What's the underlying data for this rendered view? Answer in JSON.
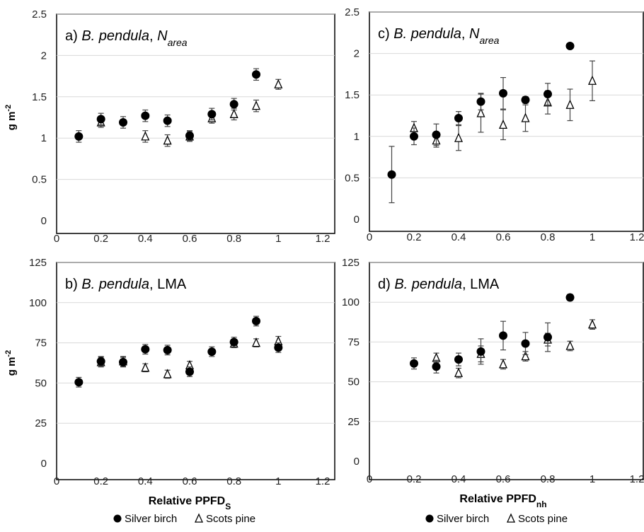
{
  "chart_data": [
    {
      "type": "scatter",
      "title_prefix": "a) ",
      "title_species": "B. pendula",
      "title_sep": ", ",
      "title_var": "N",
      "title_var_sub": "area",
      "ylabel": "g m",
      "ylabel_sup": "-2",
      "xlabel": "",
      "xlabel_sub": "",
      "xlim": [
        0,
        1.2
      ],
      "ylim": [
        0,
        2.5
      ],
      "xticks": [
        "0",
        "0.2",
        "0.4",
        "0.6",
        "0.8",
        "1",
        "1.2"
      ],
      "yticks": [
        "0",
        "0.5",
        "1",
        "1.5",
        "2",
        "2.5"
      ],
      "grid": true,
      "series": [
        {
          "name": "Silver birch",
          "marker": "filled-circle",
          "x": [
            0.1,
            0.2,
            0.3,
            0.4,
            0.5,
            0.6,
            0.7,
            0.8,
            0.9
          ],
          "y": [
            1.02,
            1.23,
            1.19,
            1.27,
            1.21,
            1.03,
            1.29,
            1.41,
            1.77
          ],
          "err": [
            0.07,
            0.07,
            0.07,
            0.07,
            0.07,
            0.06,
            0.07,
            0.07,
            0.07
          ]
        },
        {
          "name": "Scots pine",
          "marker": "open-triangle",
          "x": [
            0.2,
            0.4,
            0.5,
            0.6,
            0.7,
            0.8,
            0.9,
            1.0
          ],
          "y": [
            1.19,
            1.02,
            0.97,
            1.02,
            1.24,
            1.29,
            1.39,
            1.65
          ],
          "err": [
            0.06,
            0.07,
            0.07,
            0.06,
            0.06,
            0.07,
            0.07,
            0.06
          ]
        }
      ]
    },
    {
      "type": "scatter",
      "title_prefix": "b) ",
      "title_species": "B. pendula",
      "title_sep": ", ",
      "title_var": "LMA",
      "title_var_sub": "",
      "ylabel": "g m",
      "ylabel_sup": "-2",
      "xlabel": "Relative PPFD",
      "xlabel_sub": "S",
      "xlim": [
        0,
        1.2
      ],
      "ylim": [
        0,
        125
      ],
      "xticks": [
        "0",
        "0.2",
        "0.4",
        "0.6",
        "0.8",
        "1",
        "1.2"
      ],
      "yticks": [
        "0",
        "25",
        "50",
        "75",
        "100",
        "125"
      ],
      "grid": true,
      "series": [
        {
          "name": "Silver birch",
          "marker": "filled-circle",
          "x": [
            0.1,
            0.2,
            0.3,
            0.4,
            0.5,
            0.6,
            0.7,
            0.8,
            0.9,
            1.0
          ],
          "y": [
            50.5,
            63.5,
            63,
            71,
            70.5,
            57,
            69.5,
            75.5,
            88.5,
            72
          ],
          "err": [
            3,
            3,
            3,
            3,
            3,
            3,
            3,
            3,
            3,
            3
          ]
        },
        {
          "name": "Scots pine",
          "marker": "open-triangle",
          "x": [
            0.2,
            0.3,
            0.4,
            0.5,
            0.6,
            0.8,
            0.9,
            1.0
          ],
          "y": [
            63,
            63.5,
            59.5,
            55.5,
            61,
            74.5,
            75,
            76
          ],
          "err": [
            3,
            3,
            2.5,
            2.5,
            2.5,
            2.5,
            2.5,
            3
          ]
        }
      ]
    },
    {
      "type": "scatter",
      "title_prefix": "c) ",
      "title_species": "B. pendula",
      "title_sep": ", ",
      "title_var": "N",
      "title_var_sub": "area",
      "ylabel": "",
      "ylabel_sup": "",
      "xlabel": "",
      "xlabel_sub": "",
      "xlim": [
        0,
        1.2
      ],
      "ylim": [
        0,
        2.5
      ],
      "xticks": [
        "0",
        "0.2",
        "0.4",
        "0.6",
        "0.8",
        "1",
        "1.2"
      ],
      "yticks": [
        "0",
        "0.5",
        "1",
        "1.5",
        "2",
        "2.5"
      ],
      "grid": true,
      "series": [
        {
          "name": "Silver birch",
          "marker": "filled-circle",
          "x": [
            0.1,
            0.2,
            0.3,
            0.4,
            0.5,
            0.6,
            0.7,
            0.8,
            0.9
          ],
          "y": [
            0.54,
            1.0,
            1.02,
            1.22,
            1.42,
            1.52,
            1.44,
            1.51,
            2.09
          ],
          "err": [
            0.34,
            0.1,
            0.13,
            0.08,
            0.1,
            0.19,
            0.04,
            0.13,
            0.03
          ]
        },
        {
          "name": "Scots pine",
          "marker": "open-triangle",
          "x": [
            0.2,
            0.3,
            0.4,
            0.5,
            0.6,
            0.7,
            0.8,
            0.9,
            1.0
          ],
          "y": [
            1.1,
            0.95,
            0.98,
            1.28,
            1.14,
            1.22,
            1.41,
            1.38,
            1.67
          ],
          "err": [
            0.08,
            0.08,
            0.15,
            0.23,
            0.18,
            0.16,
            0.14,
            0.19,
            0.24
          ]
        }
      ]
    },
    {
      "type": "scatter",
      "title_prefix": "d) ",
      "title_species": "B. pendula",
      "title_sep": ", ",
      "title_var": "LMA",
      "title_var_sub": "",
      "ylabel": "",
      "ylabel_sup": "",
      "xlabel": "Relative PPFD",
      "xlabel_sub": "nh",
      "xlim": [
        0,
        1.2
      ],
      "ylim": [
        0,
        125
      ],
      "xticks": [
        "0",
        "0.2",
        "0.4",
        "0.6",
        "0.8",
        "1",
        "1.2"
      ],
      "yticks": [
        "0",
        "25",
        "50",
        "75",
        "100",
        "125"
      ],
      "grid": true,
      "series": [
        {
          "name": "Silver birch",
          "marker": "filled-circle",
          "x": [
            0.2,
            0.3,
            0.4,
            0.5,
            0.6,
            0.7,
            0.8,
            0.9
          ],
          "y": [
            61.5,
            59.5,
            64,
            69,
            79,
            74,
            78,
            103
          ],
          "err": [
            3.5,
            4,
            4,
            8,
            9,
            7,
            9,
            2
          ]
        },
        {
          "name": "Scots pine",
          "marker": "open-triangle",
          "x": [
            0.3,
            0.4,
            0.5,
            0.6,
            0.7,
            0.8,
            0.9,
            1.0
          ],
          "y": [
            65,
            55.5,
            67.5,
            61,
            66,
            76.5,
            72.5,
            86
          ],
          "err": [
            3,
            3,
            5,
            3,
            3,
            4,
            3,
            3
          ]
        }
      ]
    }
  ],
  "legends": [
    {
      "items": [
        {
          "name": "Silver birch",
          "marker": "filled-circle"
        },
        {
          "name": "Scots pine",
          "marker": "open-triangle"
        }
      ]
    },
    {
      "items": [
        {
          "name": "Silver birch",
          "marker": "filled-circle"
        },
        {
          "name": "Scots pine",
          "marker": "open-triangle"
        }
      ]
    }
  ]
}
